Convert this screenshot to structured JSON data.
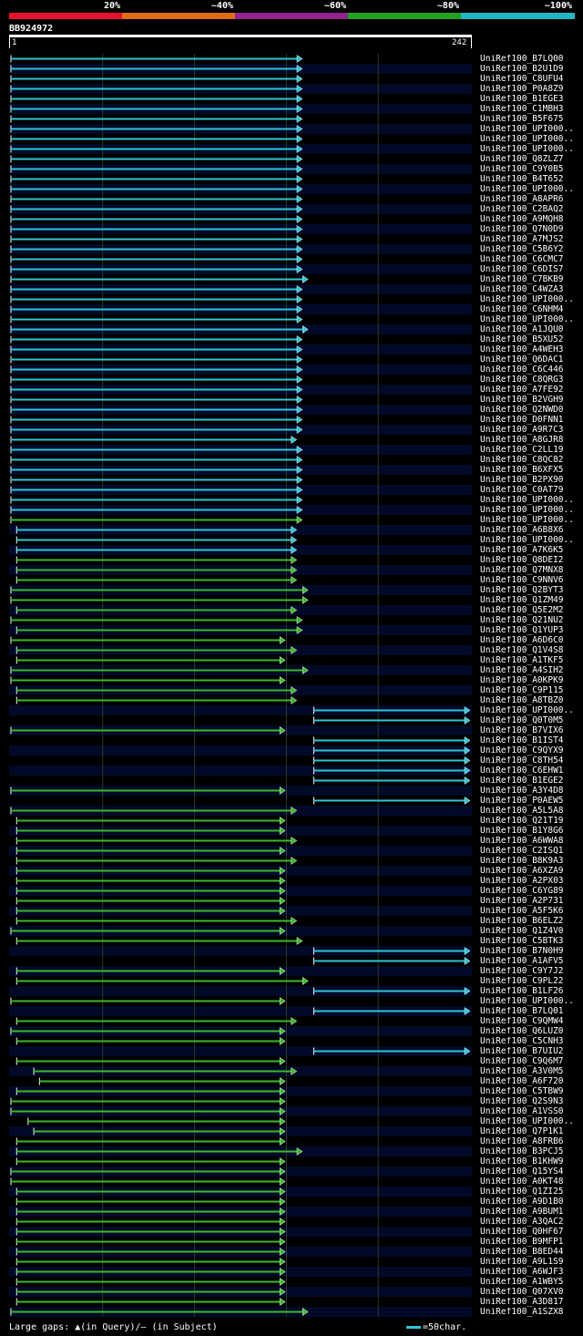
{
  "legend": {
    "segments": [
      {
        "label": "20%",
        "color": "#e8102c"
      },
      {
        "label": "~40%",
        "color": "#e06b17"
      },
      {
        "label": "~60%",
        "color": "#92228c"
      },
      {
        "label": "~80%",
        "color": "#22a01e"
      },
      {
        "label": "~100%",
        "color": "#22b4c4"
      }
    ]
  },
  "query": {
    "name": "BB924972",
    "start": "1",
    "end": "242",
    "length": 242
  },
  "colors": {
    "high": "#2fc4d6",
    "mid": "#3cb82a",
    "row_a": "#000000",
    "row_b": "#000a28",
    "grid": "#2a3a2a"
  },
  "hits": [
    {
      "label": "UniRef100_B7LQ00",
      "start": 1,
      "end": 154,
      "cls": "high"
    },
    {
      "label": "UniRef100_B2U1D9",
      "start": 1,
      "end": 154,
      "cls": "high"
    },
    {
      "label": "UniRef100_C8UFU4",
      "start": 1,
      "end": 154,
      "cls": "high"
    },
    {
      "label": "UniRef100_P0A8Z9",
      "start": 1,
      "end": 154,
      "cls": "high"
    },
    {
      "label": "UniRef100_B1EGE3",
      "start": 1,
      "end": 154,
      "cls": "high"
    },
    {
      "label": "UniRef100_C1MBH3",
      "start": 1,
      "end": 154,
      "cls": "high"
    },
    {
      "label": "UniRef100_B5F675",
      "start": 1,
      "end": 154,
      "cls": "high"
    },
    {
      "label": "UniRef100_UPI000..",
      "start": 1,
      "end": 154,
      "cls": "high"
    },
    {
      "label": "UniRef100_UPI000..",
      "start": 1,
      "end": 154,
      "cls": "high"
    },
    {
      "label": "UniRef100_UPI000..",
      "start": 1,
      "end": 154,
      "cls": "high"
    },
    {
      "label": "UniRef100_Q8ZLZ7",
      "start": 1,
      "end": 154,
      "cls": "high"
    },
    {
      "label": "UniRef100_C9Y0B5",
      "start": 1,
      "end": 154,
      "cls": "high"
    },
    {
      "label": "UniRef100_B4T652",
      "start": 1,
      "end": 154,
      "cls": "high"
    },
    {
      "label": "UniRef100_UPI000..",
      "start": 1,
      "end": 154,
      "cls": "high"
    },
    {
      "label": "UniRef100_A8APR6",
      "start": 1,
      "end": 154,
      "cls": "high"
    },
    {
      "label": "UniRef100_C2BAQ2",
      "start": 1,
      "end": 154,
      "cls": "high"
    },
    {
      "label": "UniRef100_A9MQH8",
      "start": 1,
      "end": 154,
      "cls": "high"
    },
    {
      "label": "UniRef100_Q7N0D9",
      "start": 1,
      "end": 154,
      "cls": "high"
    },
    {
      "label": "UniRef100_A7MJS2",
      "start": 1,
      "end": 154,
      "cls": "high"
    },
    {
      "label": "UniRef100_C5B6Y2",
      "start": 1,
      "end": 154,
      "cls": "high"
    },
    {
      "label": "UniRef100_C6CMC7",
      "start": 1,
      "end": 154,
      "cls": "high"
    },
    {
      "label": "UniRef100_C6DIS7",
      "start": 1,
      "end": 154,
      "cls": "high"
    },
    {
      "label": "UniRef100_C7BKB9",
      "start": 1,
      "end": 157,
      "cls": "high"
    },
    {
      "label": "UniRef100_C4WZA3",
      "start": 1,
      "end": 154,
      "cls": "high"
    },
    {
      "label": "UniRef100_UPI000..",
      "start": 1,
      "end": 154,
      "cls": "high"
    },
    {
      "label": "UniRef100_C6NHM4",
      "start": 1,
      "end": 154,
      "cls": "high"
    },
    {
      "label": "UniRef100_UPI000..",
      "start": 1,
      "end": 154,
      "cls": "high"
    },
    {
      "label": "UniRef100_A1JQU0",
      "start": 1,
      "end": 157,
      "cls": "high"
    },
    {
      "label": "UniRef100_B5XU52",
      "start": 1,
      "end": 154,
      "cls": "high"
    },
    {
      "label": "UniRef100_A4WEH3",
      "start": 1,
      "end": 154,
      "cls": "high"
    },
    {
      "label": "UniRef100_Q6DAC1",
      "start": 1,
      "end": 154,
      "cls": "high"
    },
    {
      "label": "UniRef100_C6C446",
      "start": 1,
      "end": 154,
      "cls": "high"
    },
    {
      "label": "UniRef100_C8QRG3",
      "start": 1,
      "end": 154,
      "cls": "high"
    },
    {
      "label": "UniRef100_A7FE92",
      "start": 1,
      "end": 154,
      "cls": "high"
    },
    {
      "label": "UniRef100_B2VGH9",
      "start": 1,
      "end": 154,
      "cls": "high"
    },
    {
      "label": "UniRef100_Q2NWD0",
      "start": 1,
      "end": 154,
      "cls": "high"
    },
    {
      "label": "UniRef100_D0FNN1",
      "start": 1,
      "end": 154,
      "cls": "high"
    },
    {
      "label": "UniRef100_A9R7C3",
      "start": 1,
      "end": 154,
      "cls": "high"
    },
    {
      "label": "UniRef100_A8GJR8",
      "start": 1,
      "end": 151,
      "cls": "high"
    },
    {
      "label": "UniRef100_C2LL19",
      "start": 1,
      "end": 154,
      "cls": "high"
    },
    {
      "label": "UniRef100_C8QC82",
      "start": 1,
      "end": 154,
      "cls": "high"
    },
    {
      "label": "UniRef100_B6XFX5",
      "start": 1,
      "end": 154,
      "cls": "high"
    },
    {
      "label": "UniRef100_B2PX90",
      "start": 1,
      "end": 154,
      "cls": "high"
    },
    {
      "label": "UniRef100_C0AT79",
      "start": 1,
      "end": 154,
      "cls": "high"
    },
    {
      "label": "UniRef100_UPI000..",
      "start": 1,
      "end": 154,
      "cls": "high"
    },
    {
      "label": "UniRef100_UPI000..",
      "start": 1,
      "end": 154,
      "cls": "high"
    },
    {
      "label": "UniRef100_UPI000..",
      "start": 1,
      "end": 154,
      "cls": "mid"
    },
    {
      "label": "UniRef100_A6B8X6",
      "start": 4,
      "end": 151,
      "cls": "high"
    },
    {
      "label": "UniRef100_UPI000..",
      "start": 4,
      "end": 151,
      "cls": "high"
    },
    {
      "label": "UniRef100_A7K6K5",
      "start": 4,
      "end": 151,
      "cls": "high"
    },
    {
      "label": "UniRef100_Q8DEI2",
      "start": 4,
      "end": 151,
      "cls": "mid"
    },
    {
      "label": "UniRef100_Q7MNX8",
      "start": 4,
      "end": 151,
      "cls": "mid"
    },
    {
      "label": "UniRef100_C9NNV6",
      "start": 4,
      "end": 151,
      "cls": "mid"
    },
    {
      "label": "UniRef100_Q2BYT3",
      "start": 1,
      "end": 157,
      "cls": "mid"
    },
    {
      "label": "UniRef100_Q1ZM49",
      "start": 1,
      "end": 157,
      "cls": "mid"
    },
    {
      "label": "UniRef100_Q5E2M2",
      "start": 4,
      "end": 151,
      "cls": "mid"
    },
    {
      "label": "UniRef100_Q21NU2",
      "start": 1,
      "end": 154,
      "cls": "mid"
    },
    {
      "label": "UniRef100_Q1YUP3",
      "start": 4,
      "end": 154,
      "cls": "mid"
    },
    {
      "label": "UniRef100_A6D6C0",
      "start": 1,
      "end": 145,
      "cls": "mid"
    },
    {
      "label": "UniRef100_Q1V4S8",
      "start": 4,
      "end": 151,
      "cls": "mid"
    },
    {
      "label": "UniRef100_A1TKF5",
      "start": 4,
      "end": 145,
      "cls": "mid"
    },
    {
      "label": "UniRef100_A4SIH2",
      "start": 1,
      "end": 157,
      "cls": "mid"
    },
    {
      "label": "UniRef100_A0KPK9",
      "start": 1,
      "end": 145,
      "cls": "mid"
    },
    {
      "label": "UniRef100_C9P115",
      "start": 4,
      "end": 151,
      "cls": "mid"
    },
    {
      "label": "UniRef100_A8TBZ0",
      "start": 4,
      "end": 151,
      "cls": "mid"
    },
    {
      "label": "UniRef100_UPI000..",
      "start": 160,
      "end": 242,
      "cls": "high"
    },
    {
      "label": "UniRef100_Q0T0M5",
      "start": 160,
      "end": 242,
      "cls": "high"
    },
    {
      "label": "UniRef100_B7VIX6",
      "start": 1,
      "end": 145,
      "cls": "mid"
    },
    {
      "label": "UniRef100_B1IST4",
      "start": 160,
      "end": 242,
      "cls": "high"
    },
    {
      "label": "UniRef100_C9QYX9",
      "start": 160,
      "end": 242,
      "cls": "high"
    },
    {
      "label": "UniRef100_C8TH54",
      "start": 160,
      "end": 242,
      "cls": "high"
    },
    {
      "label": "UniRef100_C6EHW1",
      "start": 160,
      "end": 242,
      "cls": "high"
    },
    {
      "label": "UniRef100_B1EGE2",
      "start": 160,
      "end": 242,
      "cls": "high"
    },
    {
      "label": "UniRef100_A3Y4D8",
      "start": 1,
      "end": 145,
      "cls": "mid"
    },
    {
      "label": "UniRef100_P0AEW5",
      "start": 160,
      "end": 242,
      "cls": "high"
    },
    {
      "label": "UniRef100_A5L5A8",
      "start": 1,
      "end": 151,
      "cls": "mid"
    },
    {
      "label": "UniRef100_Q21T19",
      "start": 4,
      "end": 145,
      "cls": "mid"
    },
    {
      "label": "UniRef100_B1Y8G6",
      "start": 4,
      "end": 145,
      "cls": "mid"
    },
    {
      "label": "UniRef100_A6WWA8",
      "start": 4,
      "end": 151,
      "cls": "mid"
    },
    {
      "label": "UniRef100_C2ISQ1",
      "start": 4,
      "end": 145,
      "cls": "mid"
    },
    {
      "label": "UniRef100_B8K9A3",
      "start": 4,
      "end": 151,
      "cls": "mid"
    },
    {
      "label": "UniRef100_A6XZA9",
      "start": 4,
      "end": 145,
      "cls": "mid"
    },
    {
      "label": "UniRef100_A2PX03",
      "start": 4,
      "end": 145,
      "cls": "mid"
    },
    {
      "label": "UniRef100_C6YG89",
      "start": 4,
      "end": 145,
      "cls": "mid"
    },
    {
      "label": "UniRef100_A2P731",
      "start": 4,
      "end": 145,
      "cls": "mid"
    },
    {
      "label": "UniRef100_A5F5K6",
      "start": 4,
      "end": 145,
      "cls": "mid"
    },
    {
      "label": "UniRef100_B6ELZ2",
      "start": 4,
      "end": 151,
      "cls": "mid"
    },
    {
      "label": "UniRef100_Q1Z4V0",
      "start": 1,
      "end": 145,
      "cls": "mid"
    },
    {
      "label": "UniRef100_C5BTK3",
      "start": 4,
      "end": 154,
      "cls": "mid"
    },
    {
      "label": "UniRef100_B7N0H9",
      "start": 160,
      "end": 242,
      "cls": "high"
    },
    {
      "label": "UniRef100_A1AFV5",
      "start": 160,
      "end": 242,
      "cls": "high"
    },
    {
      "label": "UniRef100_C9Y7J2",
      "start": 4,
      "end": 145,
      "cls": "mid"
    },
    {
      "label": "UniRef100_C9PL22",
      "start": 4,
      "end": 157,
      "cls": "mid"
    },
    {
      "label": "UniRef100_B1LF26",
      "start": 160,
      "end": 242,
      "cls": "high"
    },
    {
      "label": "UniRef100_UPI000..",
      "start": 1,
      "end": 145,
      "cls": "mid"
    },
    {
      "label": "UniRef100_B7LQ01",
      "start": 160,
      "end": 242,
      "cls": "high"
    },
    {
      "label": "UniRef100_C9QMW4",
      "start": 4,
      "end": 151,
      "cls": "mid"
    },
    {
      "label": "UniRef100_Q6LUZ0",
      "start": 1,
      "end": 145,
      "cls": "mid"
    },
    {
      "label": "UniRef100_C5CNH3",
      "start": 4,
      "end": 145,
      "cls": "mid"
    },
    {
      "label": "UniRef100_B7UIU2",
      "start": 160,
      "end": 242,
      "cls": "high"
    },
    {
      "label": "UniRef100_C9Q6M7",
      "start": 4,
      "end": 145,
      "cls": "mid"
    },
    {
      "label": "UniRef100_A3V0M5",
      "start": 13,
      "end": 151,
      "cls": "mid"
    },
    {
      "label": "UniRef100_A6F720",
      "start": 16,
      "end": 145,
      "cls": "mid"
    },
    {
      "label": "UniRef100_C5TBW9",
      "start": 4,
      "end": 145,
      "cls": "mid"
    },
    {
      "label": "UniRef100_Q2S9N3",
      "start": 1,
      "end": 145,
      "cls": "mid"
    },
    {
      "label": "UniRef100_A1VSS0",
      "start": 1,
      "end": 145,
      "cls": "mid"
    },
    {
      "label": "UniRef100_UPI000..",
      "start": 10,
      "end": 145,
      "cls": "mid"
    },
    {
      "label": "UniRef100_Q7P1K1",
      "start": 13,
      "end": 145,
      "cls": "mid"
    },
    {
      "label": "UniRef100_A8FRB6",
      "start": 4,
      "end": 145,
      "cls": "mid"
    },
    {
      "label": "UniRef100_B3PCJ5",
      "start": 4,
      "end": 154,
      "cls": "mid"
    },
    {
      "label": "UniRef100_B1KHW9",
      "start": 4,
      "end": 145,
      "cls": "mid"
    },
    {
      "label": "UniRef100_Q15YS4",
      "start": 1,
      "end": 145,
      "cls": "mid"
    },
    {
      "label": "UniRef100_A0KT48",
      "start": 1,
      "end": 145,
      "cls": "mid"
    },
    {
      "label": "UniRef100_Q1ZI25",
      "start": 4,
      "end": 145,
      "cls": "mid"
    },
    {
      "label": "UniRef100_A9D1B0",
      "start": 4,
      "end": 145,
      "cls": "mid"
    },
    {
      "label": "UniRef100_A9BUM1",
      "start": 4,
      "end": 145,
      "cls": "mid"
    },
    {
      "label": "UniRef100_A3QAC2",
      "start": 4,
      "end": 145,
      "cls": "mid"
    },
    {
      "label": "UniRef100_Q0HF67",
      "start": 4,
      "end": 145,
      "cls": "mid"
    },
    {
      "label": "UniRef100_B9MFP1",
      "start": 4,
      "end": 145,
      "cls": "mid"
    },
    {
      "label": "UniRef100_B8ED44",
      "start": 4,
      "end": 145,
      "cls": "mid"
    },
    {
      "label": "UniRef100_A9L1S9",
      "start": 4,
      "end": 145,
      "cls": "mid"
    },
    {
      "label": "UniRef100_A6WJF3",
      "start": 4,
      "end": 145,
      "cls": "mid"
    },
    {
      "label": "UniRef100_A1WBY5",
      "start": 4,
      "end": 145,
      "cls": "mid"
    },
    {
      "label": "UniRef100_Q07XV0",
      "start": 4,
      "end": 145,
      "cls": "mid"
    },
    {
      "label": "UniRef100_A3D817",
      "start": 4,
      "end": 145,
      "cls": "mid"
    },
    {
      "label": "UniRef100_A1SZX8",
      "start": 1,
      "end": 157,
      "cls": "mid"
    }
  ],
  "footer": {
    "text": "Large gaps: ▲(in Query)/– (in Subject)",
    "scale": "=50char."
  }
}
